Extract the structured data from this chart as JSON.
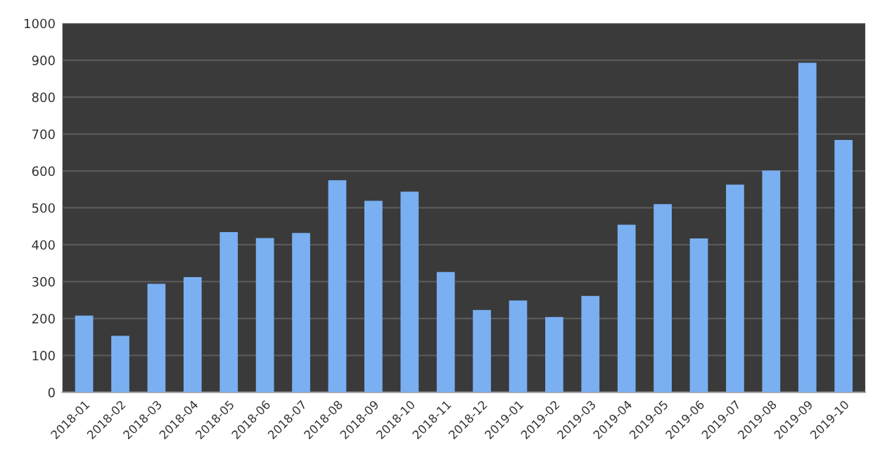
{
  "chart_data": {
    "type": "bar",
    "categories": [
      "2018-01",
      "2018-02",
      "2018-03",
      "2018-04",
      "2018-05",
      "2018-06",
      "2018-07",
      "2018-08",
      "2018-09",
      "2018-10",
      "2018-11",
      "2018-12",
      "2019-01",
      "2019-02",
      "2019-03",
      "2019-04",
      "2019-05",
      "2019-06",
      "2019-07",
      "2019-08",
      "2019-09",
      "2019-10"
    ],
    "values": [
      208,
      153,
      294,
      312,
      434,
      418,
      432,
      575,
      519,
      544,
      326,
      223,
      249,
      204,
      261,
      454,
      510,
      417,
      563,
      601,
      893,
      684
    ],
    "color": "#7ab0f2",
    "ylim": [
      0,
      1000
    ],
    "yticks": [
      0,
      100,
      200,
      300,
      400,
      500,
      600,
      700,
      800,
      900,
      1000
    ],
    "grid": "y"
  }
}
